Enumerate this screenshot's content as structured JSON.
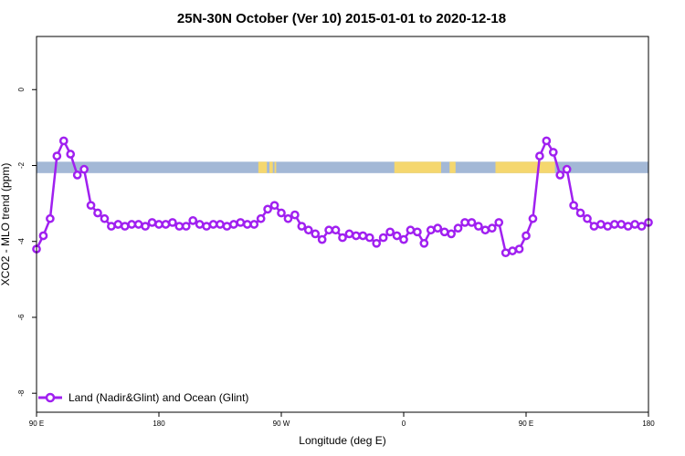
{
  "chart_data": {
    "type": "line",
    "title": "25N-30N October (Ver 10)   2015-01-01 to 2020-12-18",
    "xlabel": "Longitude (deg E)",
    "ylabel": "XCO2 - MLO trend (ppm)",
    "xlim": [
      90,
      450
    ],
    "ylim": [
      -8.5,
      1.4
    ],
    "x_ticks": [
      90,
      162,
      234,
      306,
      378,
      450
    ],
    "x_tick_labels": [
      "90 E",
      "180",
      "90 W",
      "0",
      "90 E",
      "180"
    ],
    "y_ticks": [
      0,
      -2,
      -4,
      -6,
      -8
    ],
    "y_tick_labels": [
      "0",
      "-2",
      "-4",
      "-6",
      "-8"
    ],
    "grid": false,
    "legend_position": "bottom-left",
    "line_color": "#a020f0",
    "land_color": "#f5d76e",
    "ocean_color": "#a3b8d6",
    "surface_band": [
      -1.9,
      -2.2
    ],
    "land_segments": [
      [
        220.5,
        225.5
      ],
      [
        227.0,
        229.0
      ],
      [
        230.0,
        231.0
      ],
      [
        300.5,
        328.0
      ],
      [
        333.0,
        336.5
      ],
      [
        360.0,
        395.0
      ]
    ],
    "series": [
      {
        "name": "Land (Nadir&Glint) and Ocean (Glint)",
        "x": [
          90,
          94,
          98,
          102,
          106,
          110,
          114,
          118,
          122,
          126,
          130,
          134,
          138,
          142,
          146,
          150,
          154,
          158,
          162,
          166,
          170,
          174,
          178,
          182,
          186,
          190,
          194,
          198,
          202,
          206,
          210,
          214,
          218,
          222,
          226,
          230,
          234,
          238,
          242,
          246,
          250,
          254,
          258,
          262,
          266,
          270,
          274,
          278,
          282,
          286,
          290,
          294,
          298,
          302,
          306,
          310,
          314,
          318,
          322,
          326,
          330,
          334,
          338,
          342,
          346,
          350,
          354,
          358,
          362,
          366,
          370,
          374,
          378,
          382,
          386,
          390,
          394,
          398,
          402,
          406,
          410,
          414,
          418,
          422,
          426,
          430,
          434,
          438,
          442,
          446,
          450
        ],
        "values": [
          -4.2,
          -3.85,
          -3.4,
          -1.75,
          -1.35,
          -1.7,
          -2.25,
          -2.1,
          -3.05,
          -3.25,
          -3.4,
          -3.6,
          -3.55,
          -3.6,
          -3.55,
          -3.55,
          -3.6,
          -3.5,
          -3.55,
          -3.55,
          -3.5,
          -3.6,
          -3.6,
          -3.45,
          -3.55,
          -3.6,
          -3.55,
          -3.55,
          -3.6,
          -3.55,
          -3.5,
          -3.55,
          -3.55,
          -3.4,
          -3.15,
          -3.05,
          -3.25,
          -3.4,
          -3.3,
          -3.6,
          -3.7,
          -3.8,
          -3.95,
          -3.7,
          -3.7,
          -3.9,
          -3.8,
          -3.85,
          -3.85,
          -3.9,
          -4.05,
          -3.9,
          -3.75,
          -3.85,
          -3.95,
          -3.7,
          -3.75,
          -4.05,
          -3.7,
          -3.65,
          -3.75,
          -3.8,
          -3.65,
          -3.5,
          -3.5,
          -3.6,
          -3.7,
          -3.65,
          -3.5,
          -4.3,
          -4.25,
          -4.2,
          -3.85,
          -3.4,
          -1.75,
          -1.35,
          -1.65,
          -2.25,
          -2.1,
          -3.05,
          -3.25,
          -3.4,
          -3.6,
          -3.55,
          -3.6,
          -3.55,
          -3.55,
          -3.6,
          -3.55,
          -3.6,
          -3.5
        ]
      }
    ]
  }
}
